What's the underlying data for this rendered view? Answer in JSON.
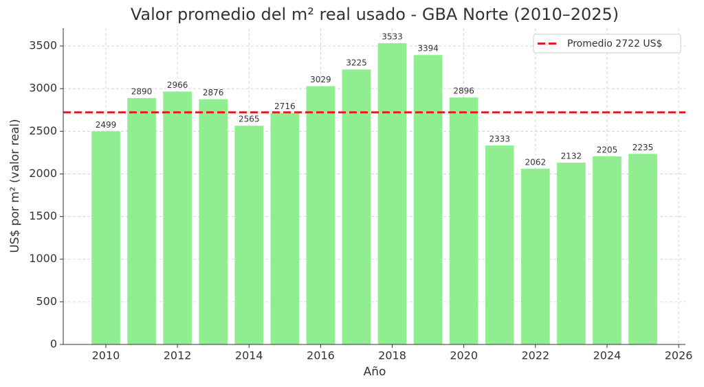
{
  "chart_data": {
    "type": "bar",
    "title": "Valor promedio del m² real usado - GBA Norte (2010–2025)",
    "x_label": "Año",
    "y_label": "US$ por m² (valor real)",
    "x": [
      2010,
      2011,
      2012,
      2013,
      2014,
      2015,
      2016,
      2017,
      2018,
      2019,
      2020,
      2021,
      2022,
      2023,
      2024,
      2025
    ],
    "values": [
      2499,
      2890,
      2966,
      2876,
      2565,
      2716,
      3029,
      3225,
      3533,
      3394,
      2896,
      2333,
      2062,
      2132,
      2205,
      2235
    ],
    "color": "#90ee90",
    "bar_width": 0.8,
    "xlim": [
      2008.81,
      2026.19
    ],
    "xticks": [
      2010,
      2012,
      2014,
      2016,
      2018,
      2020,
      2022,
      2024,
      2026
    ],
    "ylim": [
      0,
      3709.65
    ],
    "yticks": [
      0,
      500,
      1000,
      1500,
      2000,
      2500,
      3000,
      3500
    ],
    "grid": true,
    "reference_line": {
      "value": 2722,
      "label": "Promedio 2722 US$",
      "color": "#e41a1c"
    },
    "legend_position": "upper-right"
  }
}
